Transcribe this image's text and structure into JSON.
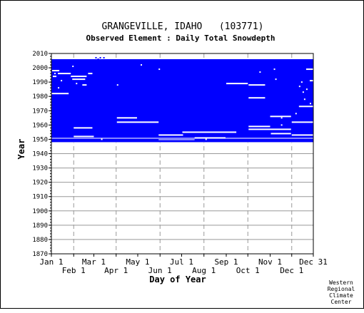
{
  "chart_data": {
    "type": "heatmap",
    "title": "GRANGEVILLE, IDAHO   (103771)",
    "subtitle": "Observed Element : Daily Total Snowdepth",
    "xlabel": "Day of Year",
    "ylabel": "Year",
    "credit": [
      "Western",
      "Regional",
      "Climate",
      "Center"
    ],
    "ylim": [
      1870,
      2010
    ],
    "xlim": [
      1,
      365
    ],
    "ytick_values": [
      1870,
      1880,
      1890,
      1900,
      1910,
      1920,
      1930,
      1940,
      1950,
      1960,
      1970,
      1980,
      1990,
      2000,
      2010
    ],
    "xticks_upper": [
      {
        "label": "Jan 1",
        "day": 1
      },
      {
        "label": "Mar 1",
        "day": 60
      },
      {
        "label": "May 1",
        "day": 121
      },
      {
        "label": "Jul 1",
        "day": 182
      },
      {
        "label": "Sep 1",
        "day": 244
      },
      {
        "label": "Nov 1",
        "day": 305
      },
      {
        "label": "Dec 31",
        "day": 365
      }
    ],
    "xticks_lower": [
      {
        "label": "Feb 1",
        "day": 32
      },
      {
        "label": "Apr 1",
        "day": 91
      },
      {
        "label": "Jun 1",
        "day": 152
      },
      {
        "label": "Aug 1",
        "day": 213
      },
      {
        "label": "Oct 1",
        "day": 274
      },
      {
        "label": "Dec 1",
        "day": 335
      }
    ],
    "fill_color": "#0000ff",
    "data_color": "#ffffff",
    "background_color": "#ffffff",
    "grid": true,
    "observed_blocks": [
      {
        "start_year": 1951,
        "end_year": 2005,
        "start_day": 1,
        "end_day": 365
      },
      {
        "start_year": 1948,
        "end_year": 1950,
        "start_day": 1,
        "end_day": 365
      }
    ],
    "gaps": [
      {
        "year": 1950,
        "start_day": 1,
        "end_day": 365
      },
      {
        "year": 1947,
        "start_day": 1,
        "end_day": 365
      },
      {
        "year": 1949,
        "start_day": 150,
        "end_day": 200
      }
    ],
    "segments": [
      {
        "year": 1998,
        "start_day": 2,
        "end_day": 12
      },
      {
        "year": 1996,
        "start_day": 10,
        "end_day": 28
      },
      {
        "year": 1994,
        "start_day": 3,
        "end_day": 8
      },
      {
        "year": 1994,
        "start_day": 28,
        "end_day": 50
      },
      {
        "year": 1992,
        "start_day": 30,
        "end_day": 48
      },
      {
        "year": 1988,
        "start_day": 44,
        "end_day": 50
      },
      {
        "year": 1982,
        "start_day": 1,
        "end_day": 25
      },
      {
        "year": 1996,
        "start_day": 52,
        "end_day": 58
      },
      {
        "year": 1958,
        "start_day": 32,
        "end_day": 58
      },
      {
        "year": 1952,
        "start_day": 32,
        "end_day": 60
      },
      {
        "year": 1965,
        "start_day": 92,
        "end_day": 120
      },
      {
        "year": 1962,
        "start_day": 92,
        "end_day": 150
      },
      {
        "year": 1988,
        "start_day": 92,
        "end_day": 94
      },
      {
        "year": 1955,
        "start_day": 183,
        "end_day": 258
      },
      {
        "year": 1953,
        "start_day": 150,
        "end_day": 184
      },
      {
        "year": 1951,
        "start_day": 200,
        "end_day": 243
      },
      {
        "year": 1989,
        "start_day": 244,
        "end_day": 274
      },
      {
        "year": 1988,
        "start_day": 275,
        "end_day": 298
      },
      {
        "year": 1979,
        "start_day": 275,
        "end_day": 298
      },
      {
        "year": 1966,
        "start_day": 305,
        "end_day": 334
      },
      {
        "year": 1962,
        "start_day": 335,
        "end_day": 365
      },
      {
        "year": 1959,
        "start_day": 275,
        "end_day": 305
      },
      {
        "year": 1957,
        "start_day": 275,
        "end_day": 334
      },
      {
        "year": 1954,
        "start_day": 306,
        "end_day": 334
      },
      {
        "year": 1953,
        "start_day": 335,
        "end_day": 365
      },
      {
        "year": 1973,
        "start_day": 345,
        "end_day": 365
      },
      {
        "year": 1999,
        "start_day": 355,
        "end_day": 365
      },
      {
        "year": 1991,
        "start_day": 360,
        "end_day": 365
      }
    ],
    "points": [
      {
        "year": 2002,
        "day": 125
      },
      {
        "year": 1999,
        "day": 150
      },
      {
        "year": 1997,
        "day": 290
      },
      {
        "year": 1992,
        "day": 312
      },
      {
        "year": 1990,
        "day": 348
      },
      {
        "year": 1985,
        "day": 355
      },
      {
        "year": 1983,
        "day": 350
      },
      {
        "year": 1978,
        "day": 352
      },
      {
        "year": 1975,
        "day": 360
      },
      {
        "year": 1968,
        "day": 340
      },
      {
        "year": 1965,
        "day": 320
      },
      {
        "year": 1960,
        "day": 320
      },
      {
        "year": 1999,
        "day": 310
      },
      {
        "year": 1987,
        "day": 345
      },
      {
        "year": 1996,
        "day": 5
      },
      {
        "year": 1991,
        "day": 14
      },
      {
        "year": 1986,
        "day": 10
      },
      {
        "year": 2001,
        "day": 30
      },
      {
        "year": 1989,
        "day": 35
      },
      {
        "year": 2007,
        "day": 62
      },
      {
        "year": 2007,
        "day": 68
      },
      {
        "year": 2007,
        "day": 73
      },
      {
        "year": 2006,
        "day": 65
      },
      {
        "year": 1950,
        "day": 70
      },
      {
        "year": 1950,
        "day": 215
      }
    ]
  }
}
